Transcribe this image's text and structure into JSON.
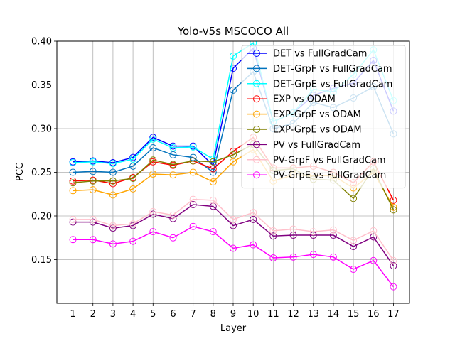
{
  "chart_data": {
    "type": "line",
    "title": "Yolo-v5s MSCOCO All",
    "xlabel": "Layer",
    "ylabel": "PCC",
    "ylim": [
      0.1,
      0.4
    ],
    "xlim": [
      0.2,
      17.8
    ],
    "x": [
      1,
      2,
      3,
      4,
      5,
      6,
      7,
      8,
      9,
      10,
      11,
      12,
      13,
      14,
      15,
      16,
      17
    ],
    "yticks": [
      0.15,
      0.2,
      0.25,
      0.3,
      0.35,
      0.4
    ],
    "ytick_labels": [
      "0.15",
      "0.20",
      "0.25",
      "0.30",
      "0.35",
      "0.40"
    ],
    "xtick_labels": [
      "1",
      "2",
      "3",
      "4",
      "5",
      "6",
      "7",
      "8",
      "9",
      "10",
      "11",
      "12",
      "13",
      "14",
      "15",
      "16",
      "17"
    ],
    "grid": true,
    "legend_position": "upper-right",
    "series": [
      {
        "name": "DET vs FullGradCam",
        "color": "#0000ff",
        "values": [
          0.262,
          0.263,
          0.261,
          0.267,
          0.29,
          0.28,
          0.28,
          0.258,
          0.369,
          0.392,
          0.308,
          0.318,
          0.338,
          0.346,
          0.352,
          0.378,
          0.32
        ]
      },
      {
        "name": "DET-GrpF vs FullGradCam",
        "color": "#0072bd",
        "values": [
          0.25,
          0.251,
          0.25,
          0.257,
          0.278,
          0.27,
          0.267,
          0.25,
          0.344,
          0.365,
          0.3,
          0.306,
          0.33,
          0.324,
          0.335,
          0.348,
          0.294
        ]
      },
      {
        "name": "DET-GrpE vs FullGradCam",
        "color": "#00ffff",
        "values": [
          0.261,
          0.262,
          0.26,
          0.265,
          0.288,
          0.278,
          0.279,
          0.265,
          0.383,
          0.398,
          0.308,
          0.318,
          0.345,
          0.342,
          0.362,
          0.39,
          0.332
        ]
      },
      {
        "name": "EXP vs ODAM",
        "color": "#ff0000",
        "values": [
          0.24,
          0.241,
          0.237,
          0.244,
          0.262,
          0.258,
          0.263,
          0.254,
          0.274,
          0.29,
          0.255,
          0.255,
          0.257,
          0.25,
          0.238,
          0.262,
          0.218
        ]
      },
      {
        "name": "EXP-GrpF vs ODAM",
        "color": "#ffa500",
        "values": [
          0.229,
          0.23,
          0.224,
          0.231,
          0.248,
          0.247,
          0.25,
          0.239,
          0.262,
          0.276,
          0.24,
          0.247,
          0.246,
          0.246,
          0.232,
          0.25,
          0.21
        ]
      },
      {
        "name": "EXP-GrpE vs ODAM",
        "color": "#808000",
        "values": [
          0.238,
          0.24,
          0.24,
          0.243,
          0.264,
          0.259,
          0.263,
          0.262,
          0.27,
          0.282,
          0.252,
          0.254,
          0.242,
          0.241,
          0.22,
          0.254,
          0.207
        ]
      },
      {
        "name": "PV vs FullGradCam",
        "color": "#800080",
        "values": [
          0.193,
          0.193,
          0.186,
          0.189,
          0.202,
          0.197,
          0.213,
          0.211,
          0.189,
          0.196,
          0.177,
          0.178,
          0.178,
          0.178,
          0.165,
          0.176,
          0.143
        ]
      },
      {
        "name": "PV-GrpF vs FullGradCam",
        "color": "#ffc0cb",
        "values": [
          0.196,
          0.196,
          0.189,
          0.191,
          0.205,
          0.201,
          0.219,
          0.218,
          0.196,
          0.204,
          0.183,
          0.185,
          0.182,
          0.184,
          0.172,
          0.183,
          0.149
        ]
      },
      {
        "name": "PV-GrpE vs FullGradCam",
        "color": "#ff00ff",
        "values": [
          0.173,
          0.173,
          0.168,
          0.171,
          0.182,
          0.175,
          0.188,
          0.182,
          0.163,
          0.167,
          0.152,
          0.153,
          0.156,
          0.153,
          0.139,
          0.149,
          0.119
        ]
      }
    ]
  }
}
